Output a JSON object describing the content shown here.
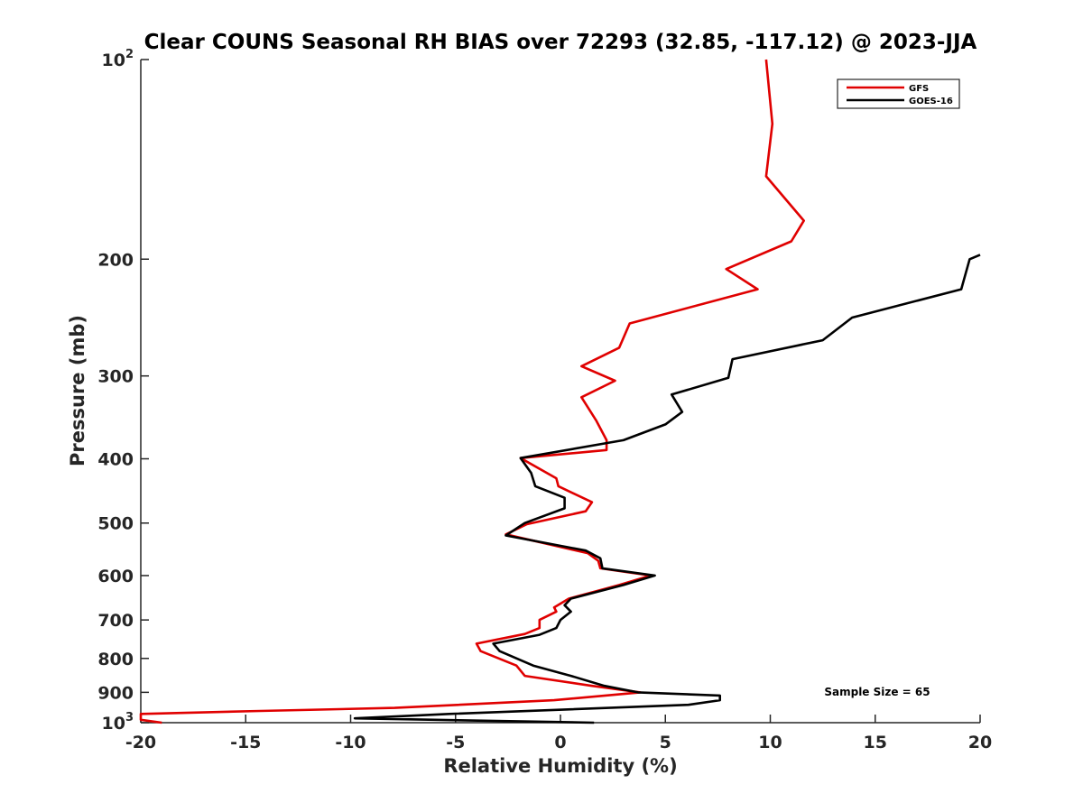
{
  "chart_data": {
    "type": "line",
    "title": "Clear COUNS Seasonal RH BIAS over 72293 (32.85, -117.12) @ 2023-JJA",
    "xlabel": "Relative Humidity (%)",
    "ylabel": "Pressure (mb)",
    "xlim": [
      -20,
      20
    ],
    "ylim": [
      1000,
      100
    ],
    "yscale": "log",
    "x_ticks": [
      -20,
      -15,
      -10,
      -5,
      0,
      5,
      10,
      15,
      20
    ],
    "x_tick_labels": [
      "-20",
      "-15",
      "-10",
      "-5",
      "0",
      "5",
      "10",
      "15",
      "20"
    ],
    "y_ticks": [
      {
        "value": 100,
        "base": "10",
        "exp": "2"
      },
      {
        "value": 200,
        "base": "200",
        "exp": ""
      },
      {
        "value": 300,
        "base": "300",
        "exp": ""
      },
      {
        "value": 400,
        "base": "400",
        "exp": ""
      },
      {
        "value": 500,
        "base": "500",
        "exp": ""
      },
      {
        "value": 600,
        "base": "600",
        "exp": ""
      },
      {
        "value": 700,
        "base": "700",
        "exp": ""
      },
      {
        "value": 800,
        "base": "800",
        "exp": ""
      },
      {
        "value": 900,
        "base": "900",
        "exp": ""
      },
      {
        "value": 1000,
        "base": "10",
        "exp": "3"
      }
    ],
    "grid": false,
    "legend_position": "top-right",
    "annotation": "Sample Size = 65",
    "series": [
      {
        "name": "GFS",
        "color": "#e00000",
        "points": [
          [
            9.8,
            100
          ],
          [
            10.1,
            125
          ],
          [
            9.8,
            150
          ],
          [
            11.6,
            175
          ],
          [
            11.0,
            188
          ],
          [
            7.9,
            207
          ],
          [
            9.4,
            222
          ],
          [
            3.3,
            250
          ],
          [
            2.8,
            272
          ],
          [
            1.0,
            290
          ],
          [
            2.6,
            305
          ],
          [
            1.0,
            323
          ],
          [
            1.7,
            350
          ],
          [
            2.2,
            375
          ],
          [
            2.2,
            388
          ],
          [
            -1.9,
            399
          ],
          [
            -0.2,
            428
          ],
          [
            -0.1,
            440
          ],
          [
            1.5,
            465
          ],
          [
            1.2,
            480
          ],
          [
            -1.6,
            502
          ],
          [
            -2.6,
            520
          ],
          [
            1.3,
            555
          ],
          [
            1.8,
            570
          ],
          [
            1.9,
            585
          ],
          [
            4.3,
            600
          ],
          [
            2.8,
            620
          ],
          [
            0.4,
            650
          ],
          [
            -0.3,
            670
          ],
          [
            -0.2,
            680
          ],
          [
            -1.0,
            700
          ],
          [
            -1.0,
            720
          ],
          [
            -1.7,
            735
          ],
          [
            -4.0,
            760
          ],
          [
            -3.8,
            780
          ],
          [
            -2.1,
            820
          ],
          [
            -1.7,
            850
          ],
          [
            1.5,
            880
          ],
          [
            3.8,
            900
          ],
          [
            -0.3,
            925
          ],
          [
            -7.9,
            950
          ],
          [
            -14.3,
            960
          ],
          [
            -20.0,
            970
          ],
          [
            -20.0,
            990
          ],
          [
            -19.0,
            1000
          ]
        ]
      },
      {
        "name": "GOES-16",
        "color": "#000000",
        "points": [
          [
            20.0,
            197
          ],
          [
            19.5,
            200
          ],
          [
            19.1,
            222
          ],
          [
            13.9,
            245
          ],
          [
            12.5,
            265
          ],
          [
            8.2,
            283
          ],
          [
            8.0,
            302
          ],
          [
            5.3,
            320
          ],
          [
            5.8,
            340
          ],
          [
            5.0,
            355
          ],
          [
            3.0,
            375
          ],
          [
            -1.9,
            399
          ],
          [
            -1.4,
            420
          ],
          [
            -1.2,
            440
          ],
          [
            0.2,
            458
          ],
          [
            0.2,
            475
          ],
          [
            -1.7,
            500
          ],
          [
            -2.6,
            522
          ],
          [
            1.2,
            550
          ],
          [
            1.9,
            565
          ],
          [
            2.0,
            585
          ],
          [
            4.5,
            600
          ],
          [
            3.0,
            620
          ],
          [
            0.5,
            650
          ],
          [
            0.2,
            665
          ],
          [
            0.5,
            680
          ],
          [
            0.0,
            700
          ],
          [
            -0.2,
            720
          ],
          [
            -1.0,
            737
          ],
          [
            -3.2,
            760
          ],
          [
            -2.9,
            780
          ],
          [
            -1.3,
            820
          ],
          [
            0.5,
            850
          ],
          [
            2.1,
            880
          ],
          [
            3.7,
            900
          ],
          [
            7.6,
            910
          ],
          [
            7.6,
            925
          ],
          [
            6.1,
            940
          ],
          [
            -5.3,
            970
          ],
          [
            -9.8,
            985
          ],
          [
            1.6,
            1000
          ]
        ]
      }
    ]
  }
}
